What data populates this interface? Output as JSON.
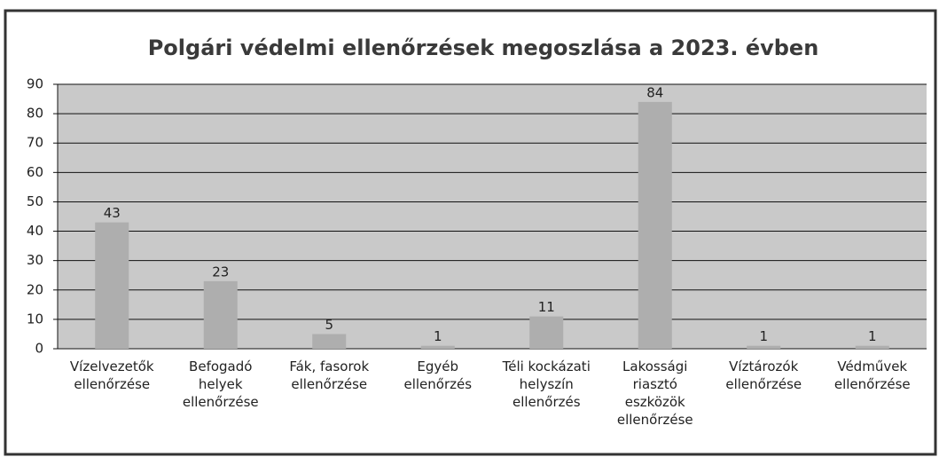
{
  "chart_data": {
    "type": "bar",
    "title": "Polgári védelmi ellenőrzések megoszlása a 2023. évben",
    "categories": [
      "Vízelvezetők ellenőrzése",
      "Befogadó helyek ellenőrzése",
      "Fák, fasorok ellenőrzése",
      "Egyéb ellenőrzés",
      "Téli kockázati helyszín ellenőrzés",
      "Lakossági riasztó eszközök ellenőrzése",
      "Víztározók ellenőrzése",
      "Védművek ellenőrzése"
    ],
    "values": [
      43,
      23,
      5,
      1,
      11,
      84,
      1,
      1
    ],
    "color": "#aeaeae",
    "ylim": [
      0,
      90
    ],
    "yticks": [
      0,
      10,
      20,
      30,
      40,
      50,
      60,
      70,
      80,
      90
    ],
    "grid": true
  }
}
